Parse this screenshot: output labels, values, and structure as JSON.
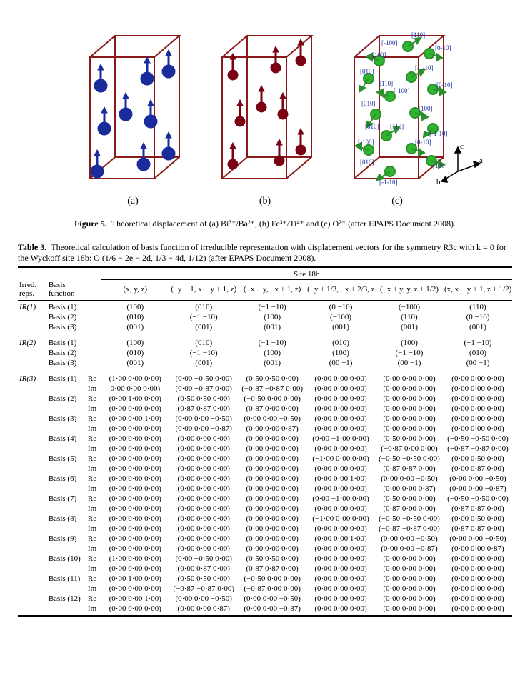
{
  "figure": {
    "caption_prefix": "Figure 5.",
    "caption_text": "Theoretical displacement of (a) Bi³⁺/Ba²⁺, (b) Fe³⁺/Ti⁴⁺ and (c) O²⁻ (after EPAPS Document 2008).",
    "labels": {
      "a": "(a)",
      "b": "(b)",
      "c": "(c)"
    },
    "axes": {
      "a": "a",
      "b": "b",
      "c": "c"
    },
    "c_labels": [
      "[110]",
      "[-100]",
      "[0-10]",
      "[100]",
      "[010]",
      "[-1-10]",
      "[110]",
      "[0-10]",
      "[010]",
      "[-100]",
      "[100]",
      "[010]",
      "[-1-10]",
      "[110]",
      "[-100]",
      "[0-10]",
      "[010]",
      "[100]",
      "[-1-10]"
    ],
    "colors": {
      "a_atom": "#1a2c9c",
      "b_atom": "#7a0212",
      "c_atom": "#2fb52f",
      "outline": "#8a1a1a",
      "arrow": "#1a2c9c",
      "arrow_b": "#7a0212",
      "arrow_c": "#2b8f2b",
      "text": "#1a2c9c"
    }
  },
  "table": {
    "caption_prefix": "Table 3.",
    "caption_text": "Theoretical calculation of basis function of irreducible representation with displacement vectors for the symmetry R3c with k = 0 for the Wyckoff site 18b: O (1/6 − 2e − 2d, 1/3 − 4d, 1/12) (after EPAPS Document 2008).",
    "header_group": "Site 18b",
    "header_left": [
      "Irred. reps.",
      "Basis function"
    ],
    "site_headers": [
      "(x, y, z)",
      "(−y + 1, x − y + 1, z)",
      "(−x + y, −x + 1, z)",
      "(−y + 1/3, −x + 2/3, z + 1/6)",
      "(−x + y, y, z + 1/2)",
      "(x, x − y + 1, z + 1/2)"
    ],
    "groups": [
      {
        "name": "IR(1)",
        "rows": [
          {
            "basis": "Basis (1)",
            "vals": [
              "(100)",
              "(010)",
              "(−1 −10)",
              "(0 −10)",
              "(−100)",
              "(110)"
            ]
          },
          {
            "basis": "Basis (2)",
            "vals": [
              "(010)",
              "(−1 −10)",
              "(100)",
              "(−100)",
              "(110)",
              "(0 −10)"
            ]
          },
          {
            "basis": "Basis (3)",
            "vals": [
              "(001)",
              "(001)",
              "(001)",
              "(001)",
              "(001)",
              "(001)"
            ]
          }
        ]
      },
      {
        "name": "IR(2)",
        "rows": [
          {
            "basis": "Basis (1)",
            "vals": [
              "(100)",
              "(010)",
              "(−1 −10)",
              "(010)",
              "(100)",
              "(−1 −10)"
            ]
          },
          {
            "basis": "Basis (2)",
            "vals": [
              "(010)",
              "(−1 −10)",
              "(100)",
              "(100)",
              "(−1 −10)",
              "(010)"
            ]
          },
          {
            "basis": "Basis (3)",
            "vals": [
              "(001)",
              "(001)",
              "(001)",
              "(00 −1)",
              "(00 −1)",
              "(00 −1)"
            ]
          }
        ]
      }
    ],
    "ir3": {
      "name": "IR(3)",
      "rows": [
        {
          "basis": "Basis (1)",
          "re": [
            "(1·00 0·00 0·00)",
            "(0·00 −0·50 0·00)",
            "(0·50 0·50 0·00)",
            "(0·00 0·00 0·00)",
            "(0·00 0·00 0·00)",
            "(0·00 0·00 0·00)"
          ],
          "im": [
            "0·00 0·00 0·00)",
            "(0·00 −0·87 0·00)",
            "(−0·87 −0·87 0·00)",
            "(0·00 0·00 0·00)",
            "(0·00 0·00 0·00)",
            "(0·00 0·00 0·00)"
          ]
        },
        {
          "basis": "Basis (2)",
          "re": [
            "(0·00 1·00 0·00)",
            "(0·50 0·50 0·00)",
            "(−0·50 0·00 0·00)",
            "(0·00 0·00 0·00)",
            "(0·00 0·00 0·00)",
            "(0·00 0·00 0·00)"
          ],
          "im": [
            "(0·00 0·00 0·00)",
            "(0·87 0·87 0·00)",
            "(0·87 0·00 0·00)",
            "(0·00 0·00 0·00)",
            "(0·00 0·00 0·00)",
            "(0·00 0·00 0·00)"
          ]
        },
        {
          "basis": "Basis (3)",
          "re": [
            "(0·00 0·00 1·00)",
            "(0·00 0·00 −0·50)",
            "(0·00 0·00 −0·50)",
            "(0·00 0·00 0·00)",
            "(0·00 0·00 0·00)",
            "(0·00 0·00 0·00)"
          ],
          "im": [
            "(0·00 0·00 0·00)",
            "(0·00 0·00 −0·87)",
            "(0·00 0·00 0·87)",
            "(0·00 0·00 0·00)",
            "(0·00 0·00 0·00)",
            "(0·00 0·00 0·00)"
          ]
        },
        {
          "basis": "Basis (4)",
          "re": [
            "(0·00 0·00 0·00)",
            "(0·00 0·00 0·00)",
            "(0·00 0·00 0·00)",
            "(0·00 −1·00 0·00)",
            "(0·50 0·00 0·00)",
            "(−0·50 −0·50 0·00)"
          ],
          "im": [
            "(0·00 0·00 0·00)",
            "(0·00 0·00 0·00)",
            "(0·00 0·00 0·00)",
            "(0·00 0·00 0·00)",
            "(−0·87 0·00 0·00)",
            "(−0·87 −0·87 0·00)"
          ]
        },
        {
          "basis": "Basis (5)",
          "re": [
            "(0·00 0·00 0·00)",
            "(0·00 0·00 0·00)",
            "(0·00 0·00 0·00)",
            "(−1·00 0·00 0·00)",
            "(−0·50 −0·50 0·00)",
            "(0·00 0·50 0·00)"
          ],
          "im": [
            "(0·00 0·00 0·00)",
            "(0·00 0·00 0·00)",
            "(0·00 0·00 0·00)",
            "(0·00 0·00 0·00)",
            "(0·87 0·87 0·00)",
            "(0·00 0·87 0·00)"
          ]
        },
        {
          "basis": "Basis (6)",
          "re": [
            "(0·00 0·00 0·00)",
            "(0·00 0·00 0·00)",
            "(0·00 0·00 0·00)",
            "(0·00 0·00 1·00)",
            "(0·00 0·00 −0·50)",
            "(0·00 0·00 −0·50)"
          ],
          "im": [
            "(0·00 0·00 0·00)",
            "(0·00 0·00 0·00)",
            "(0·00 0·00 0·00)",
            "(0·00 0·00 0·00)",
            "(0·00 0·00 0·87)",
            "(0·00 0·00 −0·87)"
          ]
        },
        {
          "basis": "Basis (7)",
          "re": [
            "(0·00 0·00 0·00)",
            "(0·00 0·00 0·00)",
            "(0·00 0·00 0·00)",
            "(0·00 −1·00 0·00)",
            "(0·50 0·00 0·00)",
            "(−0·50 −0·50 0·00)"
          ],
          "im": [
            "(0·00 0·00 0·00)",
            "(0·00 0·00 0·00)",
            "(0·00 0·00 0·00)",
            "(0·00 0·00 0·00)",
            "(0·87 0·00 0·00)",
            "(0·87 0·87 0·00)"
          ]
        },
        {
          "basis": "Basis (8)",
          "re": [
            "(0·00 0·00 0·00)",
            "(0·00 0·00 0·00)",
            "(0·00 0·00 0·00)",
            "(−1·00 0·00 0·00)",
            "(−0·50 −0·50 0·00)",
            "(0·00 0·50 0·00)"
          ],
          "im": [
            "(0·00 0·00 0·00)",
            "(0·00 0·00 0·00)",
            "(0·00 0·00 0·00)",
            "(0·00 0·00 0·00)",
            "(−0·87 −0·87 0·00)",
            "(0·87 0·87 0·00)"
          ]
        },
        {
          "basis": "Basis (9)",
          "re": [
            "(0·00 0·00 0·00)",
            "(0·00 0·00 0·00)",
            "(0·00 0·00 0·00)",
            "(0·00 0·00 1·00)",
            "(0·00 0·00 −0·50)",
            "(0·00 0·00 −0·50)"
          ],
          "im": [
            "(0·00 0·00 0·00)",
            "(0·00 0·00 0·00)",
            "(0·00 0·00 0·00)",
            "(0·00 0·00 0·00)",
            "(0·00 0·00 −0·87)",
            "(0·00 0·00 0·87)"
          ]
        },
        {
          "basis": "Basis (10)",
          "re": [
            "(1·00 0·00 0·00)",
            "(0·00 −0·50 0·00)",
            "(0·50 0·50 0·00)",
            "(0·00 0·00 0·00)",
            "(0·00 0·00 0·00)",
            "(0·00 0·00 0·00)"
          ],
          "im": [
            "(0·00 0·00 0·00)",
            "(0·00 0·87 0·00)",
            "(0·87 0·87 0·00)",
            "(0·00 0·00 0·00)",
            "(0·00 0·00 0·00)",
            "(0·00 0·00 0·00)"
          ]
        },
        {
          "basis": "Basis (11)",
          "re": [
            "(0·00 1·00 0·00)",
            "(0·50 0·50 0·00)",
            "(−0·50 0·00 0·00)",
            "(0·00 0·00 0·00)",
            "(0·00 0·00 0·00)",
            "(0·00 0·00 0·00)"
          ],
          "im": [
            "(0·00 0·00 0·00)",
            "(−0·87 −0·87 0·00)",
            "(−0·87 0·00 0·00)",
            "(0·00 0·00 0·00)",
            "(0·00 0·00 0·00)",
            "(0·00 0·00 0·00)"
          ]
        },
        {
          "basis": "Basis (12)",
          "re": [
            "(0·00 0·00 1·00)",
            "(0·00 0·00 −0·50)",
            "(0·00 0·00 −0·50)",
            "(0·00 0·00 0·00)",
            "(0·00 0·00 0·00)",
            "(0·00 0·00 0·00)"
          ],
          "im": [
            "(0·00 0·00 0·00)",
            "(0·00 0·00 0·87)",
            "(0·00 0·00 −0·87)",
            "(0·00 0·00 0·00)",
            "(0·00 0·00 0·00)",
            "(0·00 0·00 0·00)"
          ]
        }
      ]
    }
  }
}
